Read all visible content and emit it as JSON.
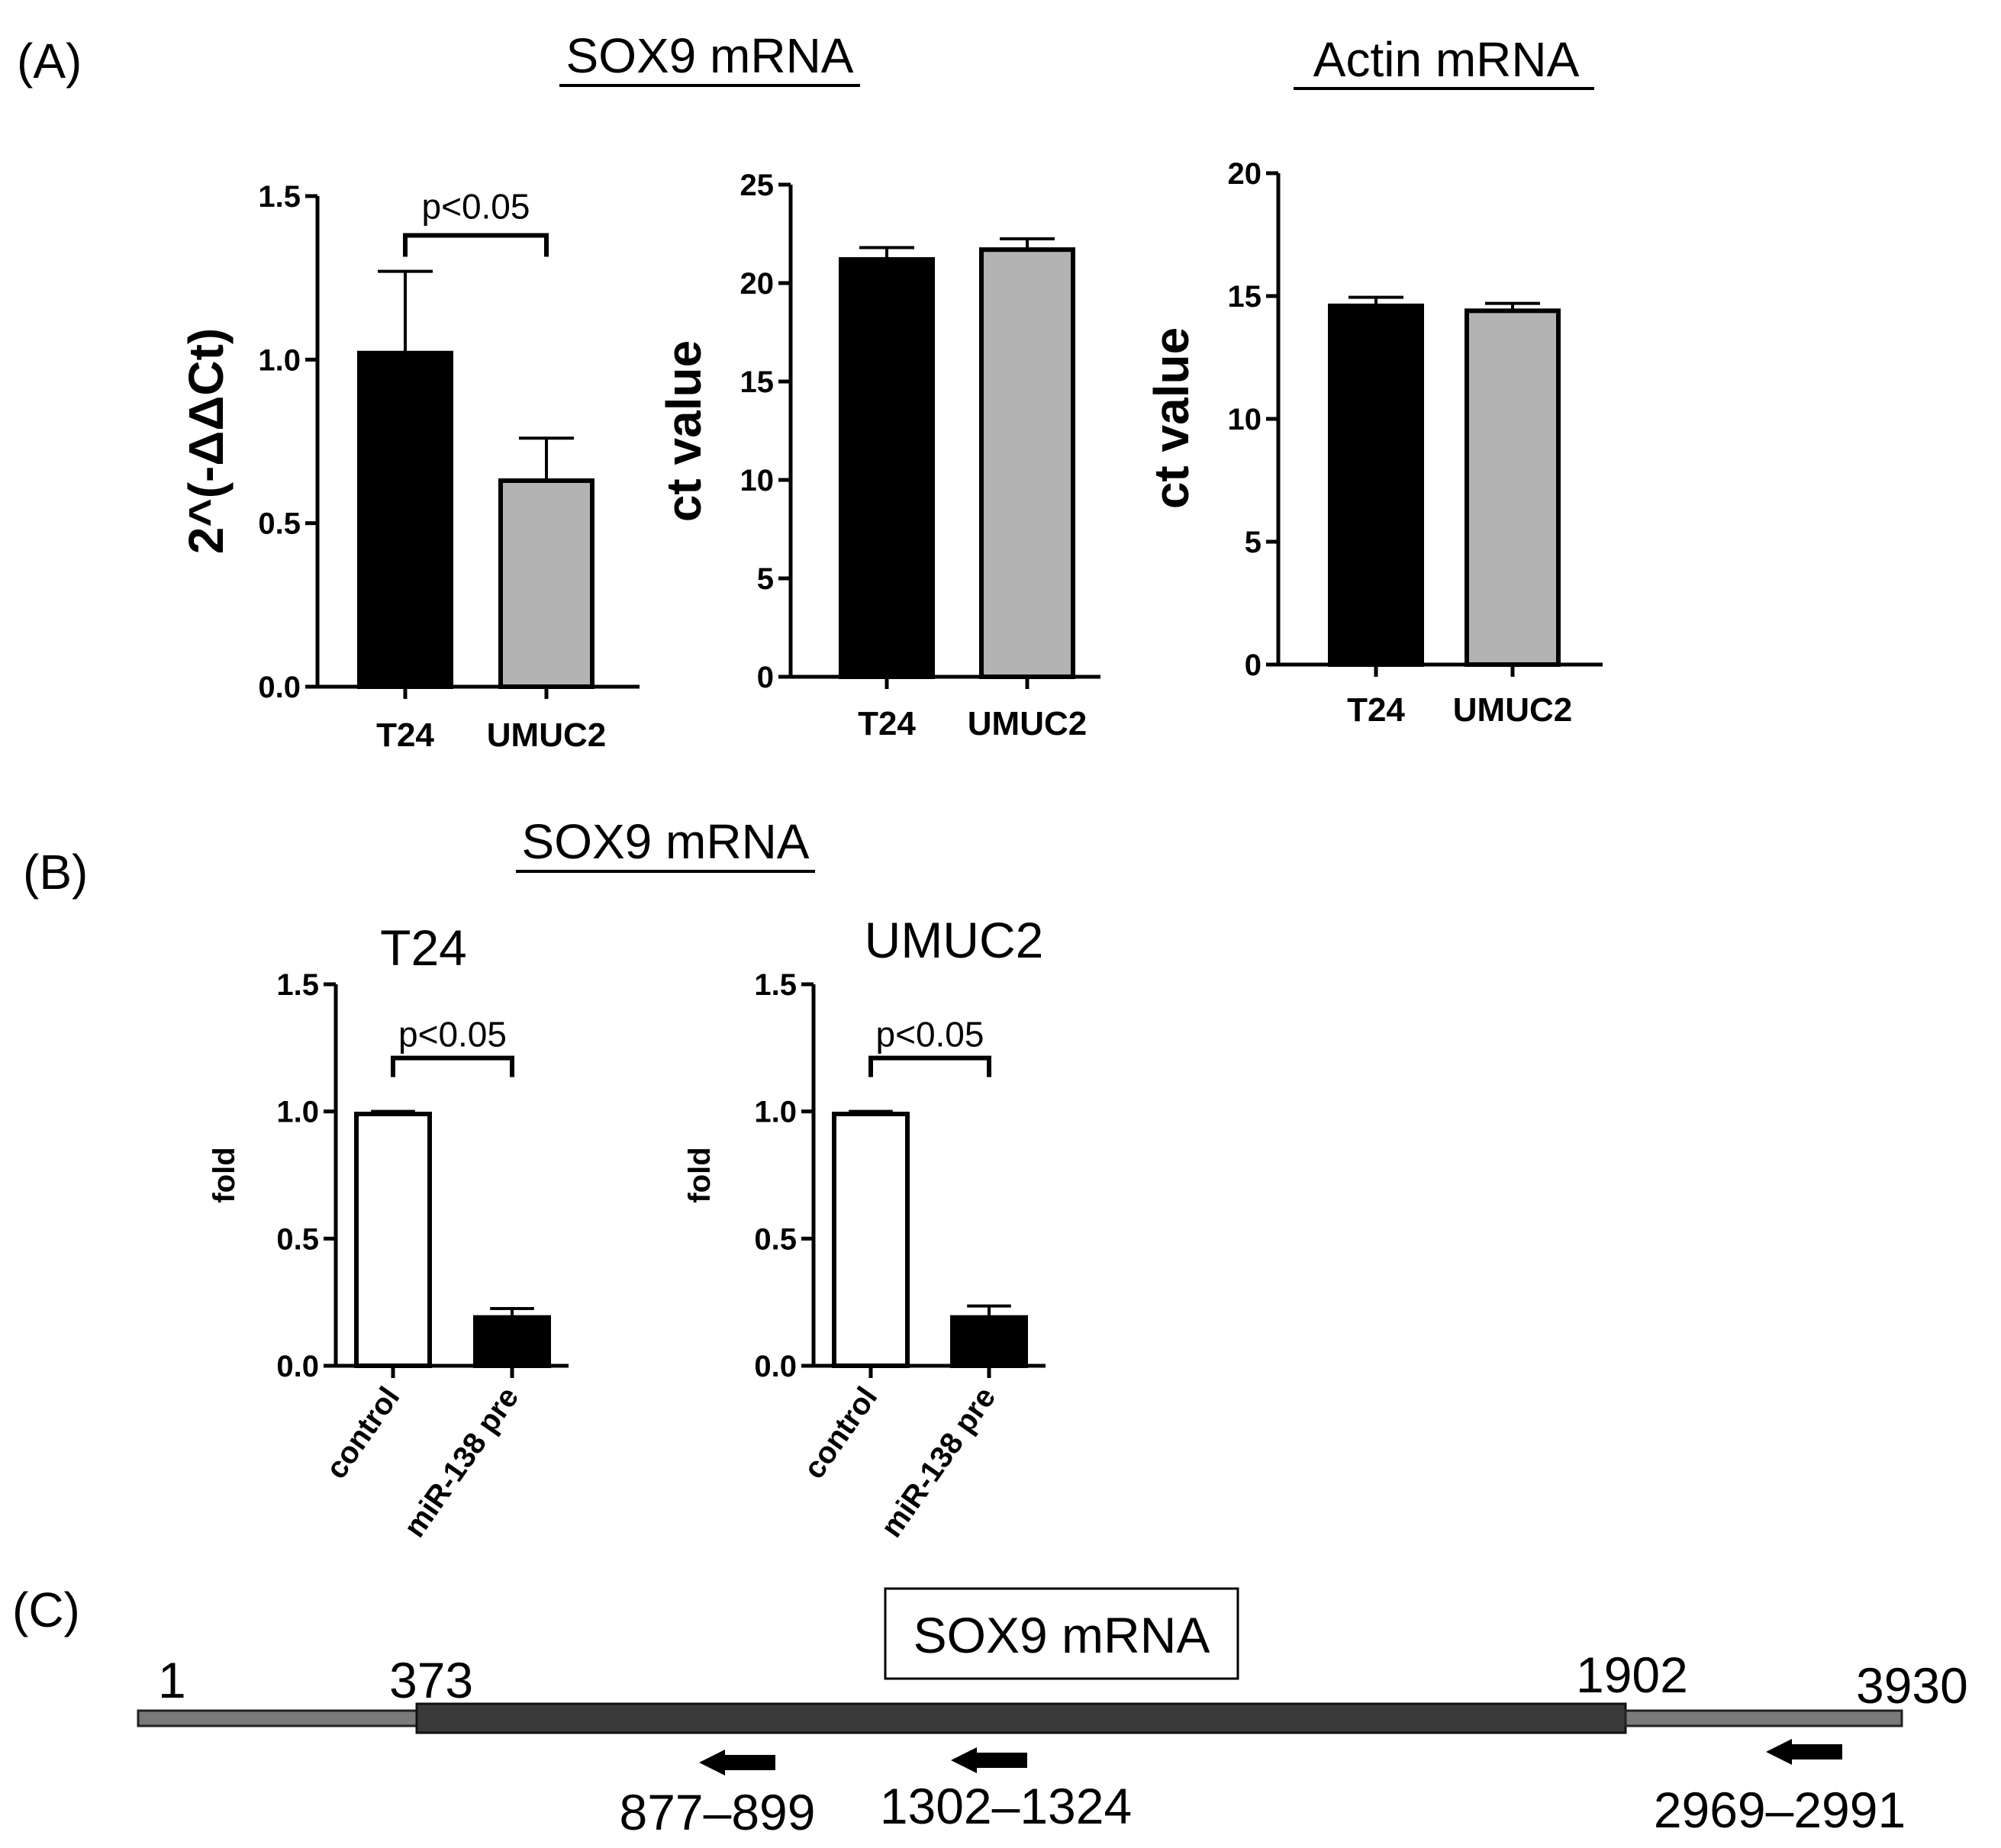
{
  "panels": {
    "A": "(A)",
    "B": "(B)",
    "C": "(C)"
  },
  "titles": {
    "a_sox9": "SOX9 mRNA",
    "a_actin": "Actin mRNA",
    "b_sox9": "SOX9 mRNA"
  },
  "colors": {
    "black": "#000000",
    "gray": "#b3b3b3",
    "white": "#ffffff",
    "utr": "#7a7a7a",
    "cds": "#3a3a3a"
  },
  "chart_data": [
    {
      "id": "a1",
      "type": "bar",
      "title": "SOX9 mRNA",
      "categories": [
        "T24",
        "UMUC2"
      ],
      "values": [
        1.02,
        0.63
      ],
      "errors": [
        0.25,
        0.13
      ],
      "fills": [
        "black",
        "gray"
      ],
      "ylabel": "2^(-ΔΔCt)",
      "ylim": [
        0,
        1.5
      ],
      "yticks": [
        "0.0",
        "0.5",
        "1.0",
        "1.5"
      ],
      "ytick_values": [
        0,
        0.5,
        1.0,
        1.5
      ],
      "significance": {
        "label": "p<0.05",
        "between": [
          0,
          1
        ],
        "y": 1.38
      }
    },
    {
      "id": "a2",
      "type": "bar",
      "title": "SOX9 mRNA",
      "categories": [
        "T24",
        "UMUC2"
      ],
      "values": [
        21.2,
        21.7
      ],
      "errors": [
        0.6,
        0.55
      ],
      "fills": [
        "black",
        "gray"
      ],
      "ylabel": "ct value",
      "ylim": [
        0,
        25
      ],
      "yticks": [
        "0",
        "5",
        "10",
        "15",
        "20",
        "25"
      ],
      "ytick_values": [
        0,
        5,
        10,
        15,
        20,
        25
      ]
    },
    {
      "id": "a3",
      "type": "bar",
      "title": "Actin mRNA",
      "categories": [
        "T24",
        "UMUC2"
      ],
      "values": [
        14.6,
        14.4
      ],
      "errors": [
        0.35,
        0.3
      ],
      "fills": [
        "black",
        "gray"
      ],
      "ylabel": "ct value",
      "ylim": [
        0,
        20
      ],
      "yticks": [
        "0",
        "5",
        "10",
        "15",
        "20"
      ],
      "ytick_values": [
        0,
        5,
        10,
        15,
        20
      ]
    },
    {
      "id": "b1",
      "type": "bar",
      "title": "T24",
      "categories": [
        "control",
        "miR-138 pre"
      ],
      "values": [
        0.99,
        0.19
      ],
      "errors": [
        0.01,
        0.035
      ],
      "fills": [
        "white",
        "black"
      ],
      "ylabel": "fold",
      "ylim": [
        0,
        1.5
      ],
      "yticks": [
        "0.0",
        "0.5",
        "1.0",
        "1.5"
      ],
      "ytick_values": [
        0,
        0.5,
        1.0,
        1.5
      ],
      "significance": {
        "label": "p<0.05",
        "between": [
          0,
          1
        ],
        "y": 1.21
      }
    },
    {
      "id": "b2",
      "type": "bar",
      "title": "UMUC2",
      "categories": [
        "control",
        "miR-138 pre"
      ],
      "values": [
        0.99,
        0.19
      ],
      "errors": [
        0.01,
        0.045
      ],
      "fills": [
        "white",
        "black"
      ],
      "ylabel": "fold",
      "ylim": [
        0,
        1.5
      ],
      "yticks": [
        "0.0",
        "0.5",
        "1.0",
        "1.5"
      ],
      "ytick_values": [
        0,
        0.5,
        1.0,
        1.5
      ],
      "significance": {
        "label": "p<0.05",
        "between": [
          0,
          1
        ],
        "y": 1.21
      }
    }
  ],
  "map": {
    "title": "SOX9 mRNA",
    "total_length": 3930,
    "cds_start": 373,
    "cds_end": 1902,
    "labels": {
      "start": "1",
      "cds_start": "373",
      "cds_end": "1902",
      "end": "3930"
    },
    "primers": [
      {
        "label": "877–899",
        "start": 877,
        "end": 899
      },
      {
        "label": "1302–1324",
        "start": 1302,
        "end": 1324
      },
      {
        "label": "2969–2991",
        "start": 2969,
        "end": 2991
      }
    ]
  }
}
